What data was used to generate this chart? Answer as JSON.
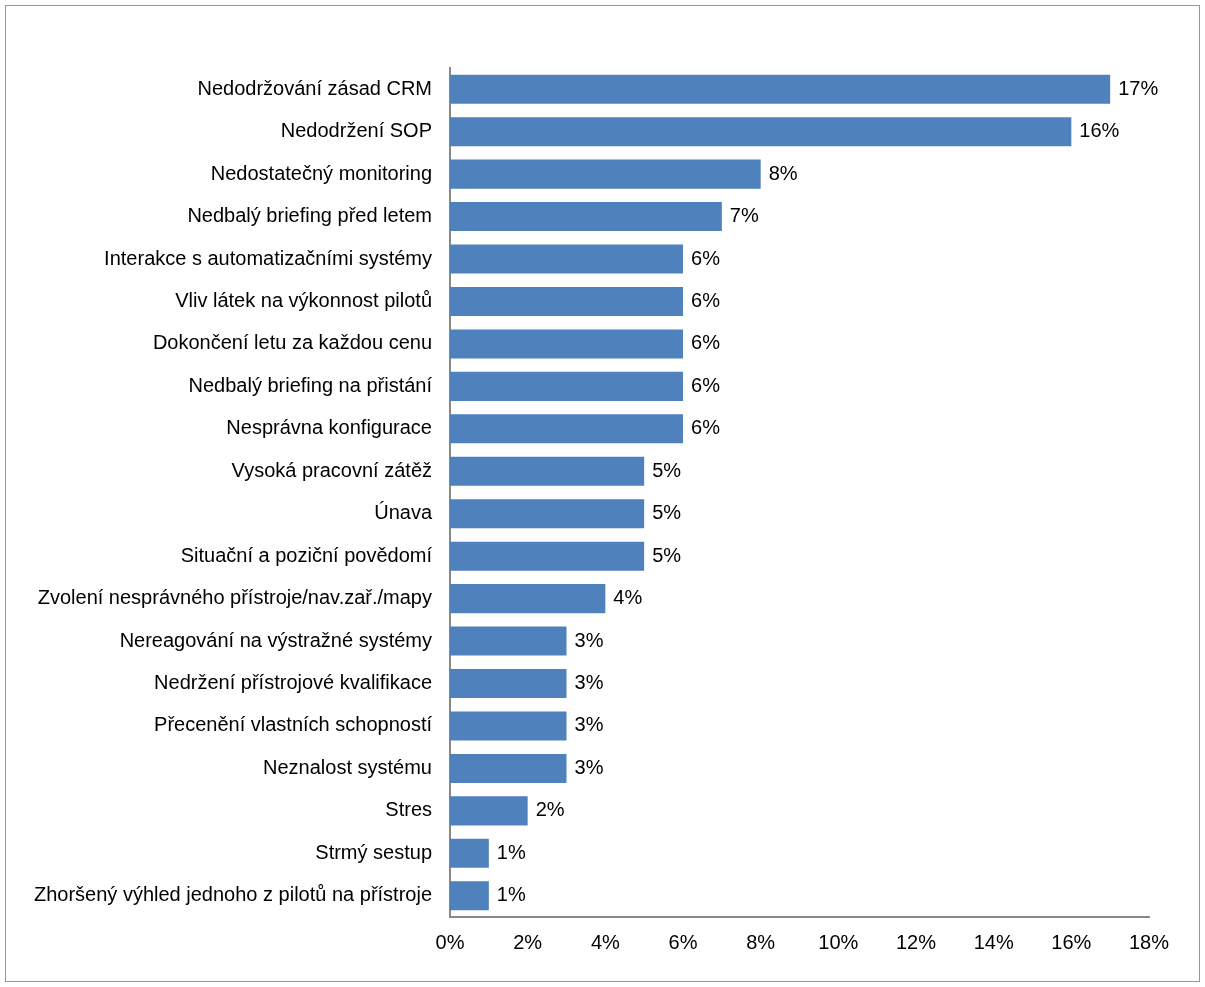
{
  "chart_data": {
    "type": "bar",
    "orientation": "horizontal",
    "categories": [
      "Nedodržování zásad CRM",
      "Nedodržení SOP",
      "Nedostatečný monitoring",
      "Nedbalý briefing před letem",
      "Interakce s automatizačními systémy",
      "Vliv látek na výkonnost pilotů",
      "Dokončení letu za každou cenu",
      "Nedbalý briefing na přistání",
      "Nesprávna konfigurace",
      "Vysoká pracovní zátěž",
      "Únava",
      "Situační a poziční povědomí",
      "Zvolení nesprávného přístroje/nav.zař./mapy",
      "Nereagování na výstražné systémy",
      "Nedržení přístrojové kvalifikace",
      "Přecenění vlastních schopností",
      "Neznalost systému",
      "Stres",
      "Strmý sestup",
      "Zhoršený výhled jednoho z pilotů na přístroje"
    ],
    "values": [
      17,
      16,
      8,
      7,
      6,
      6,
      6,
      6,
      6,
      5,
      5,
      5,
      4,
      3,
      3,
      3,
      3,
      2,
      1,
      1
    ],
    "value_labels": [
      "17%",
      "16%",
      "8%",
      "7%",
      "6%",
      "6%",
      "6%",
      "6%",
      "6%",
      "5%",
      "5%",
      "5%",
      "4%",
      "3%",
      "3%",
      "3%",
      "3%",
      "2%",
      "1%",
      "1%"
    ],
    "color": "#4f81bd",
    "xlim": [
      0,
      18
    ],
    "xticks": [
      {
        "value": 0,
        "label": "0%"
      },
      {
        "value": 2,
        "label": "2%"
      },
      {
        "value": 4,
        "label": "4%"
      },
      {
        "value": 6,
        "label": "6%"
      },
      {
        "value": 8,
        "label": "8%"
      },
      {
        "value": 10,
        "label": "10%"
      },
      {
        "value": 12,
        "label": "12%"
      },
      {
        "value": 14,
        "label": "14%"
      },
      {
        "value": 16,
        "label": "16%"
      },
      {
        "value": 18,
        "label": "18%"
      }
    ],
    "grid": false,
    "legend": false
  }
}
